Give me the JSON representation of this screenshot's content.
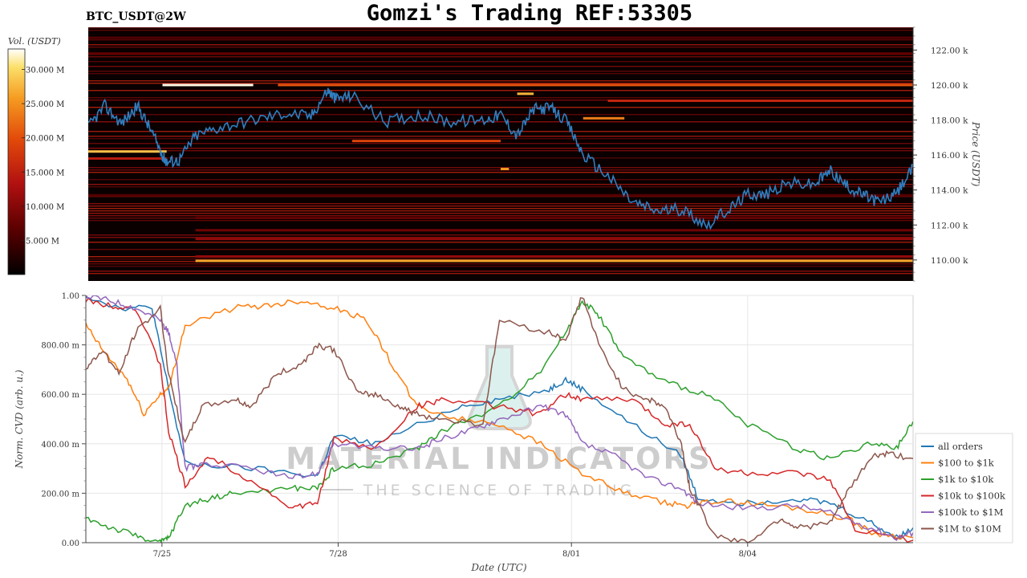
{
  "header": {
    "pair": "BTC_USDT@2W",
    "title": "Gomzi's Trading REF:53305"
  },
  "watermark": {
    "line1": "MATERIAL INDICATORS",
    "line2": "THE SCIENCE OF TRADING"
  },
  "colors": {
    "price_line": "#2f7fc1",
    "heatmap_bg": "#0a0000",
    "gradient": [
      "#000000",
      "#5a0000",
      "#b01010",
      "#e24a0a",
      "#f59a20",
      "#fbe06a",
      "#ffffff"
    ]
  },
  "chart_data": [
    {
      "type": "heatmap",
      "name": "order-book-heatmap",
      "ylabel": "Price (USDT)",
      "ylim": [
        108800,
        123300
      ],
      "y_ticks": [
        110000,
        112000,
        114000,
        116000,
        118000,
        120000,
        122000
      ],
      "y_tick_labels": [
        "110.00 k",
        "112.00 k",
        "114.00 k",
        "116.00 k",
        "118.00 k",
        "120.00 k",
        "122.00 k"
      ],
      "colorbar": {
        "label": "Vol. (USDT)",
        "range": [
          0,
          33000000
        ],
        "ticks": [
          5000000,
          10000000,
          15000000,
          20000000,
          25000000,
          30000000
        ],
        "tick_labels": [
          "5.000 M",
          "10.000 M",
          "15.000 M",
          "20.000 M",
          "25.000 M",
          "30.000 M"
        ]
      },
      "price_series": {
        "x": [
          0,
          0.02,
          0.04,
          0.06,
          0.075,
          0.09,
          0.095,
          0.11,
          0.13,
          0.16,
          0.2,
          0.24,
          0.27,
          0.29,
          0.3,
          0.32,
          0.36,
          0.4,
          0.44,
          0.48,
          0.5,
          0.52,
          0.54,
          0.56,
          0.58,
          0.6,
          0.63,
          0.66,
          0.69,
          0.72,
          0.75,
          0.78,
          0.8,
          0.82,
          0.85,
          0.88,
          0.9,
          0.92,
          0.94,
          0.96,
          0.98,
          1
        ],
        "y": [
          117600,
          118800,
          117800,
          118800,
          117500,
          116000,
          115600,
          115700,
          117100,
          117600,
          118000,
          118400,
          118200,
          119700,
          119200,
          119400,
          117900,
          118300,
          117900,
          118000,
          118300,
          117100,
          118600,
          118700,
          117900,
          116000,
          114800,
          113300,
          112800,
          112900,
          112000,
          113000,
          113800,
          113700,
          114400,
          114300,
          115100,
          114200,
          113700,
          113300,
          113800,
          115300
        ]
      },
      "levels": [
        {
          "y": 120000,
          "x0": 0.09,
          "x1": 0.2,
          "v": 32000000
        },
        {
          "y": 120000,
          "x0": 0.23,
          "x1": 1,
          "v": 17000000
        },
        {
          "y": 119100,
          "x0": 0.63,
          "x1": 1,
          "v": 13000000
        },
        {
          "y": 118100,
          "x0": 0.6,
          "x1": 0.65,
          "v": 20000000
        },
        {
          "y": 116800,
          "x0": 0.32,
          "x1": 0.5,
          "v": 16000000
        },
        {
          "y": 116200,
          "x0": 0,
          "x1": 0.095,
          "v": 25000000
        },
        {
          "y": 115800,
          "x0": 0,
          "x1": 0.095,
          "v": 12000000
        },
        {
          "y": 119500,
          "x0": 0.52,
          "x1": 0.54,
          "v": 24000000
        },
        {
          "y": 115200,
          "x0": 0.5,
          "x1": 0.51,
          "v": 22000000
        },
        {
          "y": 109950,
          "x0": 0.13,
          "x1": 1,
          "v": 23000000
        },
        {
          "y": 110200,
          "x0": 0.13,
          "x1": 1,
          "v": 9000000
        },
        {
          "y": 111200,
          "x0": 0.13,
          "x1": 1,
          "v": 9000000
        },
        {
          "y": 111700,
          "x0": 0.13,
          "x1": 1,
          "v": 7000000
        },
        {
          "y": 112400,
          "x0": 0.13,
          "x1": 1,
          "v": 6000000
        },
        {
          "y": 121800,
          "x0": 0,
          "x1": 1,
          "v": 6000000
        },
        {
          "y": 122700,
          "x0": 0,
          "x1": 1,
          "v": 5000000
        },
        {
          "y": 113700,
          "x0": 0,
          "x1": 1,
          "v": 5000000
        }
      ]
    },
    {
      "type": "line",
      "name": "normalized-cvd",
      "xlabel": "Date (UTC)",
      "ylabel": "Norm. CVD (arb. u.)",
      "ylim": [
        0,
        1
      ],
      "y_ticks": [
        0,
        0.2,
        0.4,
        0.6,
        0.8,
        1.0
      ],
      "y_tick_labels": [
        "0.00",
        "200.00 m",
        "400.00 m",
        "600.00 m",
        "800.00 m",
        "1.00"
      ],
      "x_ticks": [
        0.092,
        0.305,
        0.587,
        0.8
      ],
      "x_tick_labels": [
        "7/25",
        "7/28",
        "8/01",
        "8/04"
      ],
      "legend_position": "bottom-right",
      "series": [
        {
          "name": "all orders",
          "color": "#1f77b4",
          "x": [
            0,
            0.04,
            0.08,
            0.095,
            0.12,
            0.2,
            0.28,
            0.3,
            0.35,
            0.45,
            0.5,
            0.56,
            0.58,
            0.6,
            0.66,
            0.72,
            0.74,
            0.8,
            0.86,
            0.9,
            0.95,
            0.98,
            1
          ],
          "y": [
            1.0,
            0.95,
            0.95,
            0.7,
            0.32,
            0.3,
            0.27,
            0.43,
            0.4,
            0.55,
            0.58,
            0.62,
            0.66,
            0.62,
            0.48,
            0.35,
            0.18,
            0.16,
            0.18,
            0.16,
            0.08,
            0.02,
            0.06
          ]
        },
        {
          "name": "$100 to $1k",
          "color": "#ff7f0e",
          "x": [
            0,
            0.02,
            0.05,
            0.07,
            0.09,
            0.1,
            0.12,
            0.18,
            0.22,
            0.26,
            0.3,
            0.34,
            0.37,
            0.4,
            0.45,
            0.5,
            0.55,
            0.6,
            0.65,
            0.7,
            0.73,
            0.76,
            0.8,
            0.86,
            0.92,
            0.95,
            1
          ],
          "y": [
            0.88,
            0.78,
            0.66,
            0.52,
            0.6,
            0.62,
            0.88,
            0.95,
            0.96,
            0.98,
            0.95,
            0.9,
            0.72,
            0.55,
            0.5,
            0.48,
            0.4,
            0.28,
            0.2,
            0.16,
            0.15,
            0.17,
            0.16,
            0.14,
            0.1,
            0.04,
            0.02
          ]
        },
        {
          "name": "$1k to $10k",
          "color": "#2ca02c",
          "x": [
            0,
            0.03,
            0.06,
            0.09,
            0.1,
            0.12,
            0.15,
            0.18,
            0.25,
            0.28,
            0.3,
            0.35,
            0.4,
            0.43,
            0.5,
            0.55,
            0.58,
            0.6,
            0.62,
            0.65,
            0.7,
            0.75,
            0.8,
            0.86,
            0.9,
            0.95,
            0.98,
            1
          ],
          "y": [
            0.1,
            0.06,
            0.03,
            0.0,
            0.02,
            0.15,
            0.18,
            0.2,
            0.22,
            0.22,
            0.3,
            0.32,
            0.38,
            0.45,
            0.55,
            0.7,
            0.85,
            0.98,
            0.92,
            0.75,
            0.65,
            0.6,
            0.48,
            0.38,
            0.34,
            0.4,
            0.38,
            0.49
          ]
        },
        {
          "name": "$10k to $100k",
          "color": "#d62728",
          "x": [
            0,
            0.03,
            0.06,
            0.09,
            0.1,
            0.12,
            0.15,
            0.2,
            0.25,
            0.28,
            0.3,
            0.35,
            0.4,
            0.43,
            0.5,
            0.55,
            0.58,
            0.6,
            0.66,
            0.7,
            0.73,
            0.76,
            0.8,
            0.86,
            0.9,
            0.93,
            1
          ],
          "y": [
            0.98,
            0.96,
            0.95,
            0.72,
            0.45,
            0.23,
            0.35,
            0.25,
            0.14,
            0.16,
            0.42,
            0.38,
            0.55,
            0.58,
            0.55,
            0.52,
            0.6,
            0.58,
            0.58,
            0.48,
            0.48,
            0.3,
            0.28,
            0.28,
            0.25,
            0.05,
            0.01
          ]
        },
        {
          "name": "$100k to $1M",
          "color": "#9467bd",
          "x": [
            0,
            0.03,
            0.06,
            0.09,
            0.1,
            0.11,
            0.12,
            0.14,
            0.2,
            0.25,
            0.28,
            0.3,
            0.35,
            0.4,
            0.43,
            0.47,
            0.5,
            0.55,
            0.58,
            0.6,
            0.64,
            0.68,
            0.72,
            0.74,
            0.8,
            0.86,
            0.9,
            0.95,
            0.98,
            1
          ],
          "y": [
            1.0,
            0.98,
            0.95,
            0.9,
            0.85,
            0.72,
            0.3,
            0.32,
            0.3,
            0.26,
            0.28,
            0.4,
            0.38,
            0.38,
            0.42,
            0.46,
            0.5,
            0.55,
            0.52,
            0.4,
            0.35,
            0.26,
            0.22,
            0.16,
            0.14,
            0.15,
            0.12,
            0.06,
            0.02,
            0.04
          ]
        },
        {
          "name": "$1M to $10M",
          "color": "#8c564b",
          "x": [
            0,
            0.02,
            0.04,
            0.06,
            0.09,
            0.1,
            0.12,
            0.14,
            0.18,
            0.2,
            0.23,
            0.26,
            0.28,
            0.3,
            0.33,
            0.35,
            0.38,
            0.4,
            0.43,
            0.48,
            0.5,
            0.56,
            0.58,
            0.6,
            0.62,
            0.65,
            0.68,
            0.7,
            0.72,
            0.73,
            0.76,
            0.8,
            0.84,
            0.86,
            0.9,
            0.92,
            0.95,
            0.97,
            1
          ],
          "y": [
            0.7,
            0.78,
            0.68,
            0.85,
            0.95,
            0.68,
            0.4,
            0.55,
            0.58,
            0.55,
            0.68,
            0.72,
            0.8,
            0.78,
            0.6,
            0.6,
            0.55,
            0.52,
            0.5,
            0.48,
            0.9,
            0.85,
            0.82,
            1.0,
            0.8,
            0.62,
            0.58,
            0.55,
            0.4,
            0.22,
            0.03,
            0.0,
            0.1,
            0.06,
            0.08,
            0.2,
            0.35,
            0.36,
            0.34
          ]
        }
      ]
    }
  ]
}
